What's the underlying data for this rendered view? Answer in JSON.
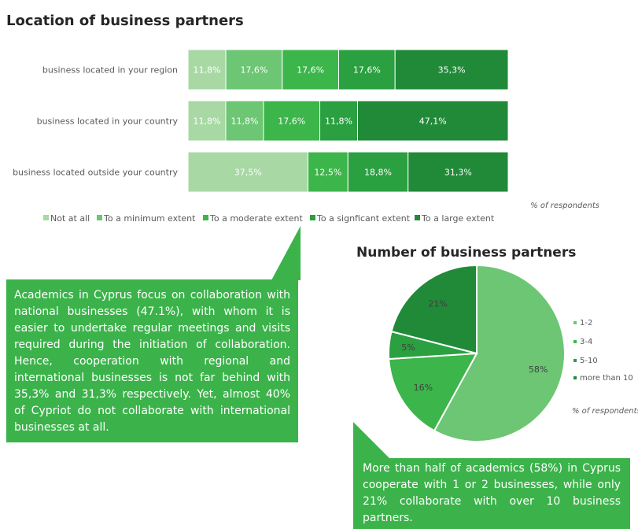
{
  "bar_title": "Location of business partners",
  "pie_title": "Number of business partners",
  "colors": [
    "#a8d8a4",
    "#6cc673",
    "#3cb54a",
    "#2aa040",
    "#218a38"
  ],
  "pie_colors": [
    "#6cc673",
    "#3cb54a",
    "#2aa040",
    "#218a38"
  ],
  "callout_color": "#3bb34a",
  "chart_data": [
    {
      "type": "bar",
      "orientation": "horizontal",
      "stacked": true,
      "categories": [
        "business located in your region",
        "business located in your country",
        "business located outside your country"
      ],
      "series": [
        {
          "name": "Not at all",
          "values": [
            11.8,
            11.8,
            37.5
          ]
        },
        {
          "name": "To a minimum extent",
          "values": [
            17.6,
            11.8,
            0
          ]
        },
        {
          "name": "To a moderate extent",
          "values": [
            17.6,
            17.6,
            12.5
          ]
        },
        {
          "name": "To a signficant extent",
          "values": [
            17.6,
            11.8,
            18.8
          ]
        },
        {
          "name": "To a large extent",
          "values": [
            35.3,
            47.1,
            31.3
          ]
        }
      ],
      "data_labels": [
        [
          "11,8%",
          "11,8%",
          "37,5%"
        ],
        [
          "17,6%",
          "11,8%",
          ""
        ],
        [
          "17,6%",
          "17,6%",
          "12,5%"
        ],
        [
          "17,6%",
          "11,8%",
          "18,8%"
        ],
        [
          "35,3%",
          "47,1%",
          "31,3%"
        ]
      ],
      "xlim": [
        0,
        100
      ],
      "note": "% of respondents",
      "legend_position": "bottom"
    },
    {
      "type": "pie",
      "labels": [
        "1-2",
        "3-4",
        "5-10",
        "more than 10"
      ],
      "values": [
        58,
        16,
        5,
        21
      ],
      "data_labels": [
        "58%",
        "16%",
        "5%",
        "21%"
      ],
      "note": "% of respondents",
      "legend_position": "right"
    }
  ],
  "callouts": {
    "academics_text": "Academics in Cyprus focus on collaboration with national businesses (47.1%), with whom it is easier to undertake regular meetings and visits required during the initiation of collaboration. Hence, cooperation with regional and international businesses is not far behind with 35,3% and 31,3% respectively. Yet, almost 40% of Cypriot do not collaborate with international businesses at all.",
    "pie_text": "More than half of academics (58%) in Cyprus cooperate with 1 or 2 businesses, while only 21% collaborate with over 10 business partners."
  }
}
